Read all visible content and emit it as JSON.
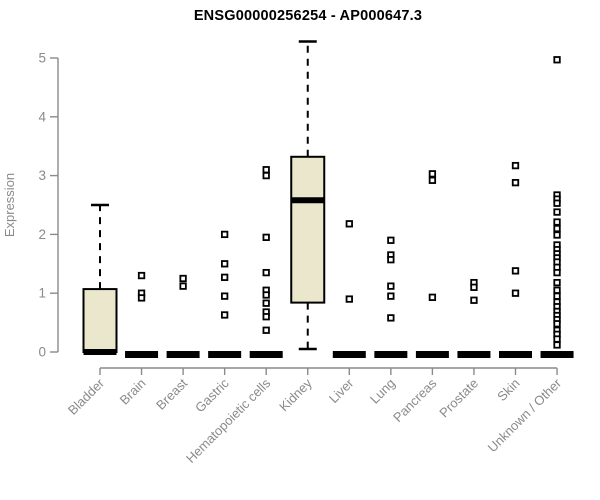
{
  "header": {
    "title": "ENSG00000256254 - AP000647.3"
  },
  "chart_data": {
    "type": "boxplot",
    "title": "ENSG00000256254 - AP000647.3",
    "xlabel": "",
    "ylabel": "Expression",
    "ylim": [
      0,
      5
    ],
    "yticks": [
      0,
      1,
      2,
      3,
      4,
      5
    ],
    "grid": false,
    "legend": false,
    "categories": [
      "Bladder",
      "Brain",
      "Breast",
      "Gastric",
      "Hematopoietic cells",
      "Kidney",
      "Liver",
      "Lung",
      "Pancreas",
      "Prostate",
      "Skin",
      "Unknown / Other"
    ],
    "boxes": [
      {
        "category": "Bladder",
        "q1": 0,
        "median": 0,
        "q3": 1.07,
        "whisker_low": 0,
        "whisker_high": 2.5,
        "outliers": []
      },
      {
        "category": "Brain",
        "q1": 0,
        "median": 0,
        "q3": 0,
        "whisker_low": 0,
        "whisker_high": 0,
        "outliers": [
          1.3,
          1.0,
          0.92
        ]
      },
      {
        "category": "Breast",
        "q1": 0,
        "median": 0,
        "q3": 0,
        "whisker_low": 0,
        "whisker_high": 0,
        "outliers": [
          1.25,
          1.12
        ]
      },
      {
        "category": "Gastric",
        "q1": 0,
        "median": 0,
        "q3": 0,
        "whisker_low": 0,
        "whisker_high": 0,
        "outliers": [
          2.0,
          1.5,
          1.27,
          0.95,
          0.63
        ]
      },
      {
        "category": "Hematopoietic cells",
        "q1": 0,
        "median": 0,
        "q3": 0,
        "whisker_low": 0,
        "whisker_high": 0,
        "outliers": [
          3.1,
          3.0,
          1.95,
          1.35,
          1.05,
          0.97,
          0.83,
          0.68,
          0.6,
          0.37
        ]
      },
      {
        "category": "Kidney",
        "q1": 0.84,
        "median": 2.58,
        "q3": 3.32,
        "whisker_low": 0.05,
        "whisker_high": 5.28,
        "outliers": []
      },
      {
        "category": "Liver",
        "q1": 0,
        "median": 0,
        "q3": 0,
        "whisker_low": 0,
        "whisker_high": 0,
        "outliers": [
          2.18,
          0.9
        ]
      },
      {
        "category": "Lung",
        "q1": 0,
        "median": 0,
        "q3": 0,
        "whisker_low": 0,
        "whisker_high": 0,
        "outliers": [
          1.9,
          1.65,
          1.57,
          1.12,
          0.95,
          0.58
        ]
      },
      {
        "category": "Pancreas",
        "q1": 0,
        "median": 0,
        "q3": 0,
        "whisker_low": 0,
        "whisker_high": 0,
        "outliers": [
          3.03,
          2.92,
          0.93
        ]
      },
      {
        "category": "Prostate",
        "q1": 0,
        "median": 0,
        "q3": 0,
        "whisker_low": 0,
        "whisker_high": 0,
        "outliers": [
          1.18,
          1.1,
          0.88
        ]
      },
      {
        "category": "Skin",
        "q1": 0,
        "median": 0,
        "q3": 0,
        "whisker_low": 0,
        "whisker_high": 0,
        "outliers": [
          3.17,
          2.88,
          1.38,
          1.0
        ]
      },
      {
        "category": "Unknown / Other",
        "q1": 0,
        "median": 0,
        "q3": 0,
        "whisker_low": 0,
        "whisker_high": 0,
        "outliers": [
          4.97,
          2.67,
          2.6,
          2.53,
          2.38,
          2.21,
          2.1,
          1.99,
          1.82,
          1.74,
          1.67,
          1.6,
          1.53,
          1.44,
          1.35,
          1.18,
          1.05,
          0.95,
          0.85,
          0.77,
          0.69,
          0.62,
          0.55,
          0.48,
          0.37,
          0.3,
          0.22,
          0.12
        ]
      }
    ],
    "colors": {
      "box_fill": "#ebe7cd",
      "box_stroke": "#000000",
      "median": "#000000",
      "whisker": "#000000",
      "outlier_fill": "#ffffff",
      "outlier_stroke": "#000000",
      "axis": "#8a8a8a",
      "title": "#000000"
    }
  }
}
